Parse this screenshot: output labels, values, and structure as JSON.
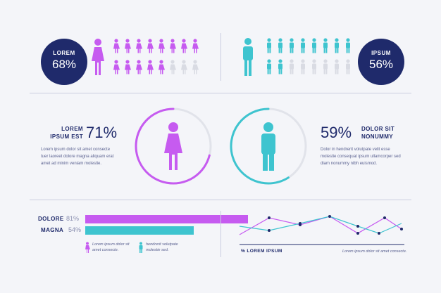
{
  "top": {
    "left_badge": {
      "label": "LOREM",
      "value": "68%"
    },
    "right_badge": {
      "label": "IPSUM",
      "value": "56%"
    },
    "colors": {
      "purple": "#c65bf0",
      "teal": "#3ec4cf",
      "gray": "#d9dbe3",
      "navy": "#1f2a6b"
    }
  },
  "middle": {
    "left": {
      "title1": "LOREM",
      "title2": "IPSUM EST",
      "value": "71%",
      "body": [
        "Lorem ipsum dolor sit amet consecte",
        "tuer laoreet dolore magna aliquam erat",
        "amet ad minim veniam molestie."
      ]
    },
    "right": {
      "title1": "DOLOR SIT",
      "title2": "NONUMMY",
      "value": "59%",
      "body": [
        "Dolor in hendrerit volutpate velit esse",
        "molestie consequat ipsum ullamcorper sed",
        "diam nonummy nibh euismod."
      ]
    }
  },
  "bottom": {
    "bars": [
      {
        "label": "DOLORE",
        "value": "81%",
        "fraction": 0.81,
        "color": "purple"
      },
      {
        "label": "MAGNA",
        "value": "54%",
        "fraction": 0.54,
        "color": "teal"
      }
    ],
    "legend": [
      {
        "text1": "Lorem ipsum dolor sit",
        "text2": "amet consecte."
      },
      {
        "text1": "hendrerit volutpate",
        "text2": "molestie sed."
      }
    ],
    "line_chart": {
      "xlabel": "% LOREM IPSUM",
      "caption": "Lorem ipsum dolor sit amet consecte."
    }
  }
}
